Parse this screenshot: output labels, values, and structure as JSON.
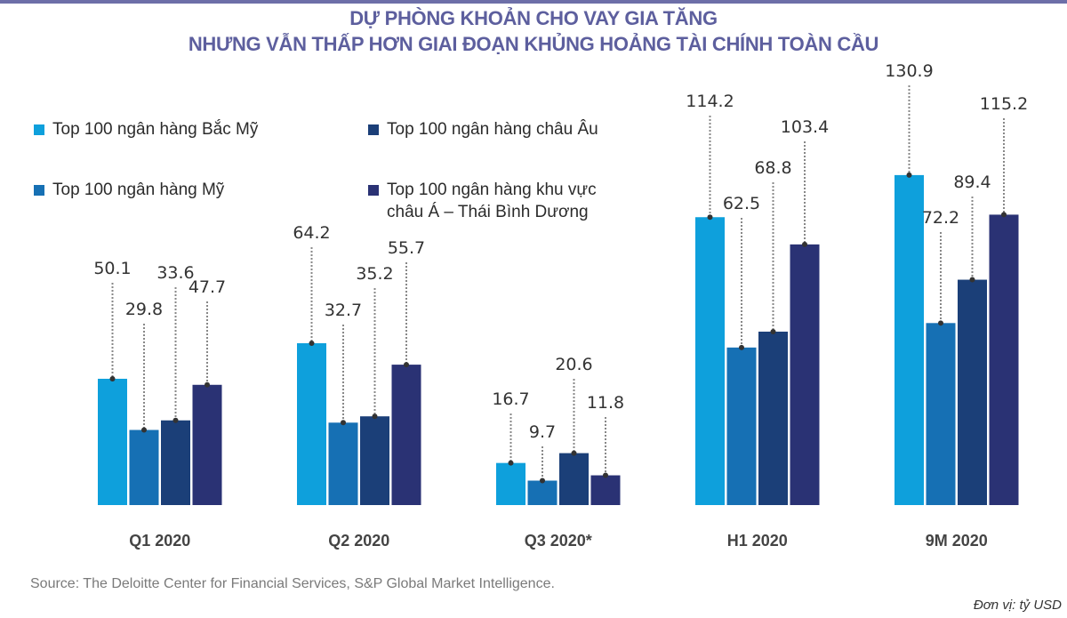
{
  "title_lines": [
    "DỰ PHÒNG KHOẢN CHO VAY GIA TĂNG",
    "NHƯNG VẪN THẤP HƠN GIAI ĐOẠN KHỦNG HOẢNG TÀI CHÍNH TOÀN CẦU"
  ],
  "source": "Source: The Deloitte Center for Financial Services, S&P Global Market Intelligence.",
  "unit": "Đơn vị: tỷ USD",
  "colors": {
    "title": "#5d5f9e",
    "series": [
      "#0ea0dc",
      "#1670b4",
      "#1b3f78",
      "#2a3274"
    ]
  },
  "chart_data": {
    "type": "bar",
    "title": "DỰ PHÒNG KHOẢN CHO VAY GIA TĂNG NHƯNG VẪN THẤP HƠN GIAI ĐOẠN KHỦNG HOẢNG TÀI CHÍNH TOÀN CẦU",
    "xlabel": "",
    "ylabel": "",
    "unit": "tỷ USD",
    "ylim": [
      0,
      140
    ],
    "grid": false,
    "legend_position": "top-left",
    "categories": [
      "Q1 2020",
      "Q2 2020",
      "Q3 2020*",
      "H1 2020",
      "9M 2020"
    ],
    "series": [
      {
        "name": "Top 100 ngân hàng Bắc Mỹ",
        "values": [
          50.1,
          64.2,
          16.7,
          114.2,
          130.9
        ]
      },
      {
        "name": "Top 100 ngân hàng Mỹ",
        "values": [
          29.8,
          32.7,
          9.7,
          62.5,
          72.2
        ]
      },
      {
        "name": "Top 100 ngân hàng châu Âu",
        "values": [
          33.6,
          35.2,
          20.6,
          68.8,
          89.4
        ]
      },
      {
        "name": "Top 100 ngân hàng khu vực châu Á – Thái Bình Dương",
        "values": [
          47.7,
          55.7,
          11.8,
          103.4,
          115.2
        ]
      }
    ],
    "data_labels": [
      [
        "50.1",
        "64.2",
        "16.7",
        "114.2",
        "130.9"
      ],
      [
        "29.8",
        "32.7",
        "9.7",
        "62.5",
        "72.2"
      ],
      [
        "33.6",
        "35.2",
        "20.6",
        "68.8",
        "89.4"
      ],
      [
        "47.7",
        "55.7",
        "11.8",
        "103.4",
        "115.2"
      ]
    ]
  }
}
